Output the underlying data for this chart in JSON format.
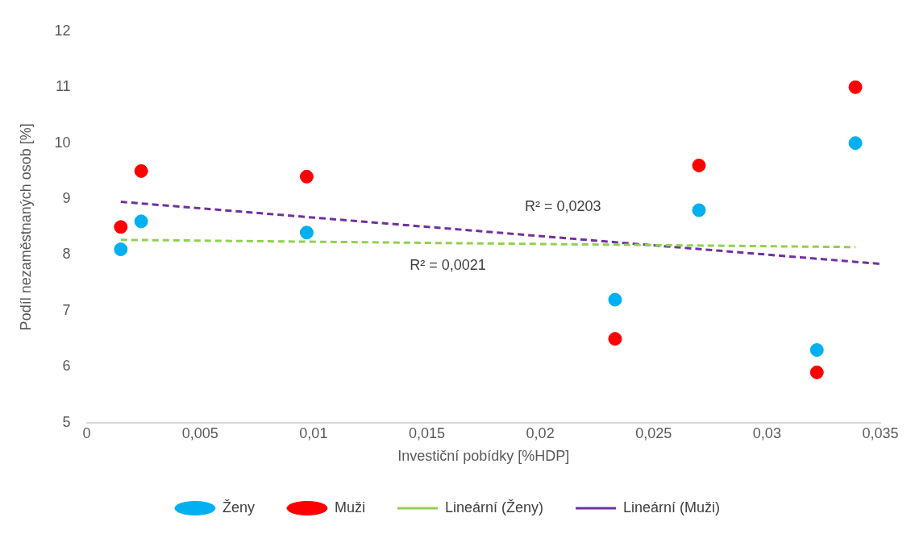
{
  "chart_data": {
    "type": "scatter",
    "xlabel": "Investiční pobídky [%HDP]",
    "ylabel": "Podíl nezaměstnaných osob [%]",
    "xlim": [
      0,
      0.035
    ],
    "xticks": [
      {
        "value": 0,
        "label": "0"
      },
      {
        "value": 0.005,
        "label": "0,005"
      },
      {
        "value": 0.01,
        "label": "0,01"
      },
      {
        "value": 0.015,
        "label": "0,015"
      },
      {
        "value": 0.02,
        "label": "0,02"
      },
      {
        "value": 0.025,
        "label": "0,025"
      },
      {
        "value": 0.03,
        "label": "0,03"
      },
      {
        "value": 0.035,
        "label": "0,035"
      }
    ],
    "ylim": [
      5,
      12
    ],
    "yticks": [
      5,
      6,
      7,
      8,
      9,
      10,
      11,
      12
    ],
    "x": [
      0.0015,
      0.0024,
      0.0097,
      0.0233,
      0.027,
      0.0322,
      0.0339
    ],
    "series": [
      {
        "name": "Ženy",
        "color": "#00b0f0",
        "marker": "circle",
        "values": [
          8.1,
          8.6,
          8.4,
          7.2,
          8.8,
          6.3,
          10
        ]
      },
      {
        "name": "Muži",
        "color": "#ff0000",
        "marker": "circle",
        "values": [
          8.5,
          9.5,
          9.4,
          6.5,
          9.6,
          5.9,
          11
        ]
      },
      {
        "name": "Lineární (Ženy)",
        "type": "line",
        "color": "#92d050",
        "line_style": "dashed",
        "marker": "none",
        "x": [
          0.0015,
          0.0339
        ],
        "values": [
          8.27,
          8.14
        ]
      },
      {
        "name": "Lineární (Muži)",
        "type": "line",
        "color": "#7030a0",
        "line_style": "dashed",
        "marker": "none",
        "x": [
          0.0015,
          0.035
        ],
        "values": [
          8.95,
          7.84
        ]
      }
    ],
    "annotations": [
      "R² = 0,0203",
      "R² = 0,0021"
    ],
    "grid": false,
    "legend": "bottom"
  }
}
